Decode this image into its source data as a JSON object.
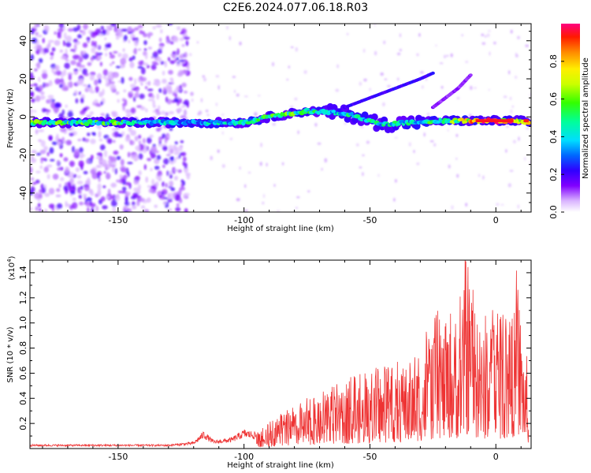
{
  "figure_title": "C2E6.2024.077.06.18.R03",
  "colors": {
    "snr_line": "#ee3333",
    "axes": "#000000",
    "background": "#ffffff"
  },
  "chart_data": [
    {
      "type": "heatmap",
      "title": "",
      "xlabel": "Height of straight line (km)",
      "ylabel": "Frequency (Hz)",
      "xlim": [
        -185,
        14
      ],
      "ylim": [
        -50,
        49
      ],
      "xticks": [
        -150,
        -100,
        -50,
        0
      ],
      "yticks": [
        -40,
        -20,
        0,
        20,
        40
      ],
      "colorbar": {
        "label": "Normalized spectral amplitude",
        "range": [
          0,
          1
        ],
        "ticks": [
          "0.0",
          "0.2",
          "0.4",
          "0.6",
          "0.8"
        ],
        "colormap": "rainbow (purple to red)"
      },
      "main_ridge": {
        "description_of_data": "strong energy band near 0 Hz across heights",
        "x": [
          -185,
          -150,
          -125,
          -100,
          -90,
          -75,
          -60,
          -45,
          -35,
          -20,
          -10,
          0,
          10,
          13
        ],
        "y": [
          -3,
          -3,
          -3,
          -3,
          0,
          3,
          2,
          -4,
          -3,
          -2,
          -2,
          -2,
          -2,
          -3
        ],
        "intensity": [
          0.6,
          0.6,
          0.4,
          0.5,
          0.6,
          0.6,
          0.5,
          0.5,
          0.5,
          0.6,
          0.9,
          1.0,
          0.9,
          1.0
        ]
      },
      "upper_branch": {
        "x": [
          -60,
          -50,
          -40,
          -30,
          -25
        ],
        "y": [
          5,
          10,
          15,
          20,
          23
        ]
      },
      "upper_branch_2": {
        "x": [
          -25,
          -20,
          -15,
          -10
        ],
        "y": [
          5,
          10,
          15,
          22
        ]
      }
    },
    {
      "type": "line",
      "title": "",
      "xlabel": "Height of straight line (km)",
      "ylabel": "SNR (10 * v/v)",
      "y_multiplier": "(x10",
      "y_multiplier_exp": "4",
      "xlim": [
        -185,
        14
      ],
      "ylim": [
        0,
        1.5
      ],
      "xticks": [
        -150,
        -100,
        -50,
        0
      ],
      "yticks": [
        "0.2",
        "0.4",
        "0.6",
        "0.8",
        "1.0",
        "1.2",
        "1.4"
      ],
      "series": [
        {
          "envelope_x": [
            -185,
            -130,
            -120,
            -116,
            -112,
            -105,
            -100,
            -95,
            -85,
            -75,
            -65,
            -50,
            -40,
            -30,
            -20,
            -15,
            -12,
            -8,
            -5,
            0,
            5,
            9,
            11,
            13
          ],
          "envelope_y": [
            0.03,
            0.03,
            0.05,
            0.13,
            0.06,
            0.08,
            0.14,
            0.12,
            0.25,
            0.35,
            0.45,
            0.55,
            0.6,
            0.75,
            1.05,
            1.0,
            1.47,
            1.0,
            0.95,
            1.0,
            0.95,
            1.35,
            0.9,
            0.5
          ]
        }
      ]
    }
  ]
}
